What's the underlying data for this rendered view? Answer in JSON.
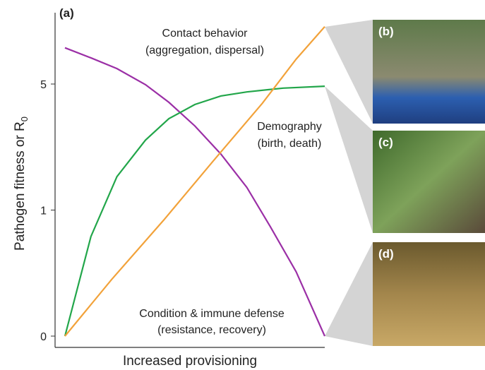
{
  "chart_data": {
    "type": "line",
    "panel_label": "(a)",
    "y_label": "Pathogen fitness or R",
    "y_label_subscript": "0",
    "x_label": "Increased provisioning",
    "xlim": [
      0,
      1
    ],
    "ylim": [
      0,
      7.2
    ],
    "yticks": [
      0,
      1,
      5
    ],
    "series": [
      {
        "color": "#9b2fa6",
        "x": [
          0,
          0.1,
          0.2,
          0.31,
          0.4,
          0.5,
          0.6,
          0.7,
          0.79,
          0.89,
          1
        ],
        "values": [
          6.15,
          5.83,
          5.49,
          4.98,
          4.42,
          3.67,
          2.78,
          1.72,
          0.87,
          0.51,
          0
        ]
      },
      {
        "color": "#22a64a",
        "x": [
          0,
          0.1,
          0.2,
          0.31,
          0.4,
          0.5,
          0.6,
          0.7,
          0.84,
          1
        ],
        "values": [
          0,
          0.79,
          2.06,
          3.22,
          3.9,
          4.35,
          4.62,
          4.75,
          4.87,
          4.93
        ]
      },
      {
        "color": "#f2a23a",
        "x": [
          0,
          0.18,
          0.38,
          0.57,
          0.76,
          0.89,
          1
        ],
        "values": [
          0,
          0.45,
          0.92,
          2.55,
          4.39,
          5.79,
          6.82
        ]
      }
    ],
    "annotations": [
      {
        "line1": "Contact behavior",
        "line2": "(aggregation, dispersal)"
      },
      {
        "line1": "Demography",
        "line2": "(birth, death)"
      },
      {
        "line1": "Condition & immune defense",
        "line2": "(resistance, recovery)"
      }
    ],
    "photo_labels": [
      "(b)",
      "(c)",
      "(d)"
    ]
  }
}
